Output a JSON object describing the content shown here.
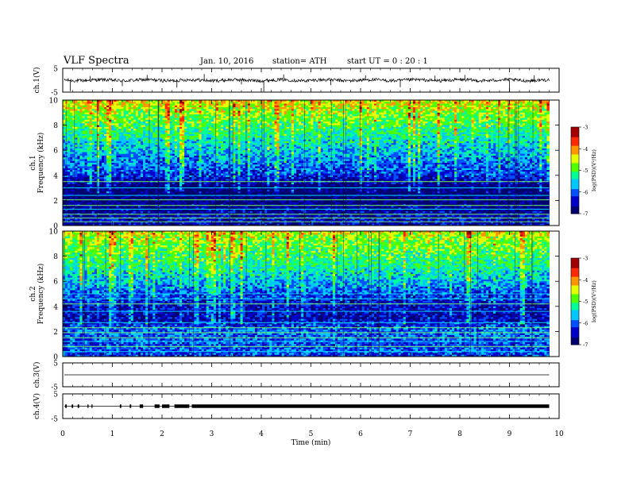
{
  "header": {
    "title": "VLF  Spectra",
    "date": "Jan. 10, 2016",
    "station": "station= ATH",
    "start_ut": "start  UT =   0  : 20 : 1"
  },
  "colors": {
    "background": "#ffffff",
    "axis": "#000000",
    "spectrogram_scale": [
      "#00006e",
      "#0000c8",
      "#0050ff",
      "#00c8ff",
      "#00ff96",
      "#50ff00",
      "#e6ff00",
      "#ff9600",
      "#ff2800",
      "#a00000",
      "#ffffff"
    ]
  },
  "chart_data": [
    {
      "type": "line",
      "name": "ch1-waveform",
      "ylabel": "ch.1(V)",
      "yticks": [
        "5",
        "-5"
      ],
      "ylim": [
        -5,
        5
      ],
      "xlim": [
        0,
        10
      ],
      "data_end_min": 9.8,
      "baseline": 0,
      "spikes": [
        {
          "x": 0.15,
          "y": -4.6
        },
        {
          "x": 0.55,
          "y": 1.8
        },
        {
          "x": 1.2,
          "y": -2.5
        },
        {
          "x": 1.7,
          "y": 2.2
        },
        {
          "x": 2.3,
          "y": -3.1
        },
        {
          "x": 2.85,
          "y": 2.6
        },
        {
          "x": 3.6,
          "y": -1.8
        },
        {
          "x": 4.05,
          "y": -4.8
        },
        {
          "x": 4.45,
          "y": 2.4
        },
        {
          "x": 5.4,
          "y": -2.1
        },
        {
          "x": 6.1,
          "y": 2.0
        },
        {
          "x": 6.8,
          "y": -2.9
        },
        {
          "x": 7.5,
          "y": 1.9
        },
        {
          "x": 8.1,
          "y": 2.2
        },
        {
          "x": 9.0,
          "y": -4.9
        },
        {
          "x": 9.5,
          "y": 2.1
        }
      ]
    },
    {
      "type": "heatmap",
      "name": "ch1-spectrogram",
      "ylabel": "ch.1\nFrequency  (kHz)",
      "yticks": [
        "0",
        "2",
        "4",
        "6",
        "8",
        "10"
      ],
      "ylim": [
        0,
        10
      ],
      "xlim": [
        0,
        10
      ],
      "data_end_min": 9.8,
      "colorbar": {
        "label": "log(PSD)(V²/Hz)",
        "ticks": [
          "-3",
          "-4",
          "-5",
          "-6",
          "-7"
        ],
        "range": [
          -7,
          -3
        ]
      },
      "log_psd_profile": [
        {
          "f": 0,
          "v": -6.5
        },
        {
          "f": 0.5,
          "v": -6.4
        },
        {
          "f": 1,
          "v": -6.6
        },
        {
          "f": 2,
          "v": -6.8
        },
        {
          "f": 3,
          "v": -6.9
        },
        {
          "f": 4,
          "v": -6.2
        },
        {
          "f": 5,
          "v": -5.9
        },
        {
          "f": 6,
          "v": -5.6
        },
        {
          "f": 7,
          "v": -5.3
        },
        {
          "f": 8,
          "v": -5.0
        },
        {
          "f": 9,
          "v": -4.7
        },
        {
          "f": 10,
          "v": -4.3
        }
      ],
      "tones_khz": [
        0.3,
        0.6,
        0.9,
        1.3,
        1.6,
        2.05,
        2.4,
        3.0,
        3.5
      ]
    },
    {
      "type": "heatmap",
      "name": "ch2-spectrogram",
      "ylabel": "ch.2\nFrequency  (kHz)",
      "yticks": [
        "0",
        "2",
        "4",
        "6",
        "8",
        "10"
      ],
      "ylim": [
        0,
        10
      ],
      "xlim": [
        0,
        10
      ],
      "data_end_min": 9.8,
      "colorbar": {
        "label": "log(PSD)(V²/Hz)",
        "ticks": [
          "-3",
          "-4",
          "-5",
          "-6",
          "-7"
        ],
        "range": [
          -7,
          -3
        ]
      },
      "log_psd_profile": [
        {
          "f": 0,
          "v": -6.2
        },
        {
          "f": 0.5,
          "v": -6.0
        },
        {
          "f": 1,
          "v": -6.1
        },
        {
          "f": 2,
          "v": -5.9
        },
        {
          "f": 3,
          "v": -6.5
        },
        {
          "f": 4,
          "v": -6.4
        },
        {
          "f": 5,
          "v": -6.1
        },
        {
          "f": 6,
          "v": -5.6
        },
        {
          "f": 7,
          "v": -5.3
        },
        {
          "f": 8,
          "v": -5.0
        },
        {
          "f": 9,
          "v": -4.8
        },
        {
          "f": 10,
          "v": -4.4
        }
      ],
      "tones_khz": [
        0.4,
        0.8,
        1.2,
        1.5,
        1.9,
        2.3,
        2.7,
        3.6,
        4.2,
        4.6,
        5.0
      ]
    },
    {
      "type": "line",
      "name": "ch3-waveform",
      "ylabel": "ch.3(V)",
      "yticks": [
        "5",
        "-5"
      ],
      "ylim": [
        -5,
        5
      ],
      "xlim": [
        0,
        10
      ],
      "data_end_min": 9.8,
      "baseline": 0
    },
    {
      "type": "line",
      "name": "ch4-waveform",
      "ylabel": "ch.4(V)",
      "yticks": [
        "5",
        "-5"
      ],
      "ylim": [
        -5,
        5
      ],
      "xlim": [
        0,
        10
      ],
      "data_end_min": 9.8,
      "baseline": 0,
      "pulse_segments_min": [
        [
          0.05,
          0.08
        ],
        [
          0.18,
          0.21
        ],
        [
          0.3,
          0.33
        ],
        [
          0.5,
          0.52
        ],
        [
          0.58,
          0.6
        ],
        [
          1.15,
          1.18
        ],
        [
          1.35,
          1.38
        ],
        [
          1.55,
          1.62
        ],
        [
          1.85,
          1.95
        ],
        [
          2.0,
          2.15
        ],
        [
          2.25,
          2.55
        ],
        [
          2.6,
          9.8
        ]
      ]
    }
  ],
  "x_axis": {
    "label": "Time  (min)",
    "ticks": [
      "0",
      "1",
      "2",
      "3",
      "4",
      "5",
      "6",
      "7",
      "8",
      "9",
      "10"
    ],
    "range": [
      0,
      10
    ]
  }
}
